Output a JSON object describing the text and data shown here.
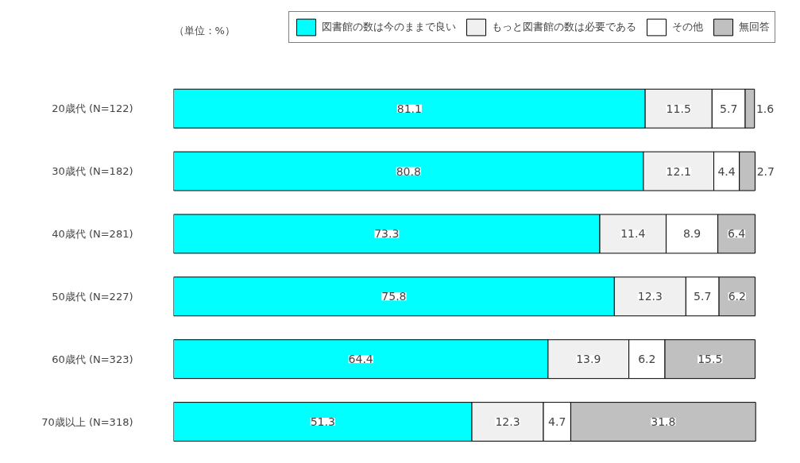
{
  "chart_data": {
    "type": "bar",
    "orientation": "horizontal",
    "stacked": true,
    "data_labels": true,
    "legend": "top",
    "grid": false,
    "categories": [
      "20歳代 (N=122)",
      "30歳代 (N=182)",
      "40歳代 (N=281)",
      "50歳代 (N=227)",
      "60歳代 (N=323)",
      "70歳以上 (N=318)"
    ],
    "series": [
      {
        "name": "図書館の数は今のままで良い",
        "color": "#00ffff",
        "values": [
          81.1,
          80.8,
          73.3,
          75.8,
          64.4,
          51.3
        ]
      },
      {
        "name": "もっと図書館の数は必要である",
        "color": "#f0f0f0",
        "values": [
          11.5,
          12.1,
          11.4,
          12.3,
          13.9,
          12.3
        ]
      },
      {
        "name": "その他",
        "color": "#ffffff",
        "values": [
          5.7,
          4.4,
          8.9,
          5.7,
          6.2,
          4.7
        ]
      },
      {
        "name": "無回答",
        "color": "#c0c0c0",
        "values": [
          1.6,
          2.7,
          6.4,
          6.2,
          15.5,
          31.8
        ]
      }
    ],
    "annotations": [
      "（単位：%）"
    ]
  }
}
